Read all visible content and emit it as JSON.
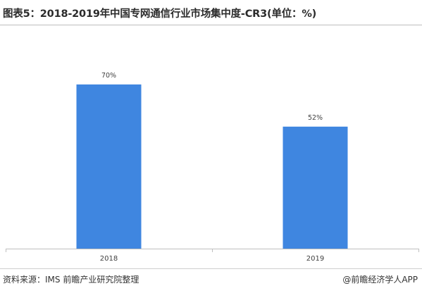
{
  "title": "图表5：2018-2019年中国专网通信行业市场集中度-CR3(单位：%)",
  "source": "资料来源：IMS 前瞻产业研究院整理",
  "brand": "@前瞻经济学人APP",
  "colors": {
    "bar": "#3f86e0",
    "axis": "#bfbfbf",
    "label": "#404040"
  },
  "chart_data": {
    "type": "bar",
    "title": "图表5：2018-2019年中国专网通信行业市场集中度-CR3(单位：%)",
    "categories": [
      "2018",
      "2019"
    ],
    "values": [
      70,
      52
    ],
    "data_labels": [
      "70%",
      "52%"
    ],
    "xlabel": "",
    "ylabel": "",
    "ylim": [
      0,
      100
    ],
    "grid": false,
    "legend": "none"
  }
}
